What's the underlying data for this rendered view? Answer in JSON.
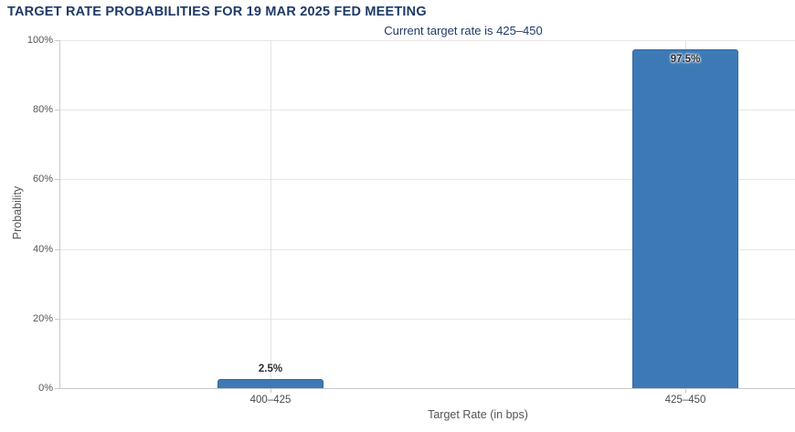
{
  "chart_data": {
    "type": "bar",
    "title": "TARGET RATE PROBABILITIES FOR 19 MAR 2025 FED MEETING",
    "subtitle": "Current target rate is 425–450",
    "xlabel": "Target Rate (in bps)",
    "ylabel": "Probability",
    "categories": [
      "400–425",
      "425–450"
    ],
    "values": [
      2.5,
      97.5
    ],
    "bar_labels": [
      "2.5%",
      "97.5%"
    ],
    "ylim": [
      0,
      100
    ],
    "yticks": [
      0,
      20,
      40,
      60,
      80,
      100
    ],
    "ytick_labels": [
      "0%",
      "20%",
      "40%",
      "60%",
      "80%",
      "100%"
    ],
    "grid": true,
    "legend": false,
    "colors": {
      "bar": "#3d7ab5",
      "bar_border": "#35689c",
      "title": "#1f3a68",
      "grid": "#e6e6e6",
      "grid_vertical": "#e3e3e3",
      "axis_line": "#c9c9c9",
      "tick_label": "#555555",
      "axis_title": "#555555",
      "data_label": "#2e2e2e"
    }
  }
}
